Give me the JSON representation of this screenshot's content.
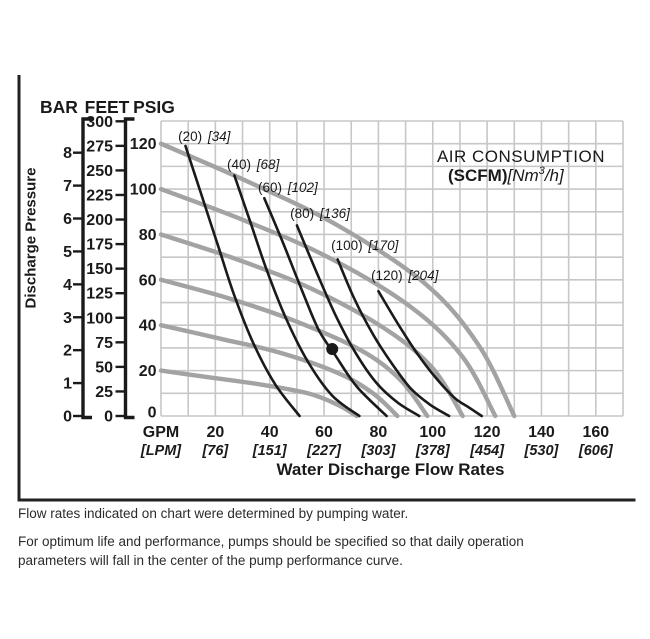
{
  "page": {
    "background": "#ffffff"
  },
  "colors": {
    "ink": "#1a1a1a",
    "pump_curve_gray": "#a3a3a3",
    "grid": "#c7c7c7",
    "border": "#222222",
    "footnote_text": "#2b2b2b"
  },
  "scales_header": {
    "bar": "BAR",
    "feet": "FEET",
    "psig": "PSIG"
  },
  "chart_data": {
    "type": "line",
    "title": "AIR CONSUMPTION",
    "air_units": {
      "primary": "(SCFM)",
      "secondary_prefix": "[Nm",
      "secondary_sup": "3",
      "secondary_suffix": "/h]"
    },
    "ylabel": "Discharge Pressure",
    "xlabel": "Water Discharge Flow Rates",
    "x_units": {
      "primary": "GPM",
      "secondary": "[LPM]"
    },
    "xlim": [
      0,
      170
    ],
    "ylim_psig": [
      0,
      130
    ],
    "grid_step_gpm": 10,
    "grid_step_psig": 10,
    "grid_on": true,
    "y_scale_bar": {
      "unit": "BAR",
      "ticks": [
        8,
        7,
        6,
        5,
        4,
        3,
        2,
        1,
        0
      ]
    },
    "y_scale_feet": {
      "unit": "FEET",
      "ticks": [
        300,
        275,
        250,
        225,
        200,
        175,
        150,
        125,
        100,
        75,
        50,
        25,
        0
      ]
    },
    "y_scale_psig": {
      "unit": "PSIG",
      "ticks": [
        120,
        100,
        80,
        60,
        40,
        20,
        0
      ]
    },
    "x_ticks": [
      {
        "gpm": "20",
        "lpm": "[76]"
      },
      {
        "gpm": "40",
        "lpm": "[151]"
      },
      {
        "gpm": "60",
        "lpm": "[227]"
      },
      {
        "gpm": "80",
        "lpm": "[303]"
      },
      {
        "gpm": "100",
        "lpm": "[378]"
      },
      {
        "gpm": "120",
        "lpm": "[454]"
      },
      {
        "gpm": "140",
        "lpm": "[530]"
      },
      {
        "gpm": "160",
        "lpm": "[606]"
      }
    ],
    "pump_curves": [
      {
        "name": "pump-curve-120-psig",
        "start_psig": 120,
        "max_flow_gpm": 130,
        "points_gpm_psig": [
          [
            0,
            120
          ],
          [
            32.5,
            103
          ],
          [
            65,
            84
          ],
          [
            97.5,
            58
          ],
          [
            117,
            31
          ],
          [
            130,
            0
          ]
        ]
      },
      {
        "name": "pump-curve-100-psig",
        "start_psig": 100,
        "max_flow_gpm": 123,
        "points_gpm_psig": [
          [
            0,
            100
          ],
          [
            31,
            86
          ],
          [
            61.5,
            70
          ],
          [
            92,
            48
          ],
          [
            111,
            26
          ],
          [
            123,
            0
          ]
        ]
      },
      {
        "name": "pump-curve-80-psig",
        "start_psig": 80,
        "max_flow_gpm": 111,
        "points_gpm_psig": [
          [
            0,
            80
          ],
          [
            28,
            69
          ],
          [
            55.5,
            56
          ],
          [
            83,
            38
          ],
          [
            100,
            21
          ],
          [
            111,
            0
          ]
        ]
      },
      {
        "name": "pump-curve-60-psig",
        "start_psig": 60,
        "max_flow_gpm": 98,
        "points_gpm_psig": [
          [
            0,
            60
          ],
          [
            24.5,
            52
          ],
          [
            49,
            42
          ],
          [
            73.5,
            29
          ],
          [
            88,
            16
          ],
          [
            98,
            0
          ]
        ]
      },
      {
        "name": "pump-curve-40-psig",
        "start_psig": 40,
        "max_flow_gpm": 87,
        "points_gpm_psig": [
          [
            0,
            40
          ],
          [
            22,
            34
          ],
          [
            43.5,
            28
          ],
          [
            65,
            19
          ],
          [
            78,
            10
          ],
          [
            87,
            0
          ]
        ]
      },
      {
        "name": "pump-curve-20-psig",
        "start_psig": 20,
        "max_flow_gpm": 72,
        "points_gpm_psig": [
          [
            0,
            20
          ],
          [
            18,
            17
          ],
          [
            36,
            14
          ],
          [
            54,
            10
          ],
          [
            65,
            5
          ],
          [
            72,
            0
          ]
        ]
      }
    ],
    "air_curves": [
      {
        "scfm_label": "(20)",
        "nm3h_label": "[34]",
        "label_at_gpm_psig": [
          6.3,
          121.2
        ],
        "points_gpm_psig": [
          [
            9,
            119
          ],
          [
            15,
            97
          ],
          [
            21,
            75
          ],
          [
            27,
            53
          ],
          [
            34,
            32
          ],
          [
            42,
            14
          ],
          [
            51,
            0
          ]
        ]
      },
      {
        "scfm_label": "(40)",
        "nm3h_label": "[68]",
        "label_at_gpm_psig": [
          24.3,
          108.9
        ],
        "points_gpm_psig": [
          [
            27,
            106
          ],
          [
            33,
            85
          ],
          [
            39,
            64
          ],
          [
            46,
            43
          ],
          [
            54,
            24
          ],
          [
            63,
            9
          ],
          [
            73,
            0
          ]
        ]
      },
      {
        "scfm_label": "(60)",
        "nm3h_label": "[102]",
        "label_at_gpm_psig": [
          35.7,
          98.7
        ],
        "points_gpm_psig": [
          [
            38,
            96
          ],
          [
            45,
            76
          ],
          [
            52,
            55
          ],
          [
            58,
            38
          ],
          [
            64,
            27
          ],
          [
            72,
            13
          ],
          [
            83,
            0
          ]
        ]
      },
      {
        "scfm_label": "(80)",
        "nm3h_label": "[136]",
        "label_at_gpm_psig": [
          47.5,
          87.3
        ],
        "points_gpm_psig": [
          [
            50,
            84
          ],
          [
            57,
            64
          ],
          [
            64,
            45
          ],
          [
            71,
            29
          ],
          [
            79,
            15
          ],
          [
            87,
            6
          ],
          [
            95,
            0
          ]
        ]
      },
      {
        "scfm_label": "(100)",
        "nm3h_label": "[170]",
        "label_at_gpm_psig": [
          62.6,
          73.2
        ],
        "points_gpm_psig": [
          [
            65,
            69
          ],
          [
            71,
            52
          ],
          [
            78,
            36
          ],
          [
            85,
            23
          ],
          [
            92,
            12
          ],
          [
            99,
            5
          ],
          [
            106,
            0
          ]
        ]
      },
      {
        "scfm_label": "(120)",
        "nm3h_label": "[204]",
        "label_at_gpm_psig": [
          77.3,
          59.9
        ],
        "points_gpm_psig": [
          [
            80,
            55
          ],
          [
            87,
            41
          ],
          [
            94,
            28
          ],
          [
            101,
            17
          ],
          [
            108,
            8
          ],
          [
            113,
            4
          ],
          [
            118,
            0
          ]
        ]
      }
    ],
    "operating_point": {
      "gpm": 63,
      "psig": 29.5
    }
  },
  "footnotes": {
    "note1": "Flow rates indicated on chart were determined by pumping water.",
    "note2_line1": "For optimum life and performance, pumps should be specified so that daily operation",
    "note2_line2": "parameters will fall in the center of the pump performance curve."
  }
}
